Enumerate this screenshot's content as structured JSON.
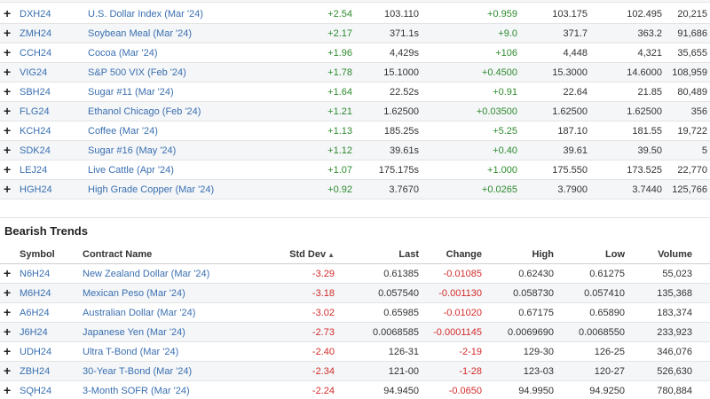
{
  "bullish": {
    "rows": [
      {
        "symbol": "DXH24",
        "name": "U.S. Dollar Index (Mar '24)",
        "std": "+2.54",
        "last": "103.110",
        "change": "+0.959",
        "high": "103.175",
        "low": "102.495",
        "volume": "20,215"
      },
      {
        "symbol": "ZMH24",
        "name": "Soybean Meal (Mar '24)",
        "std": "+2.17",
        "last": "371.1s",
        "change": "+9.0",
        "high": "371.7",
        "low": "363.2",
        "volume": "91,686"
      },
      {
        "symbol": "CCH24",
        "name": "Cocoa (Mar '24)",
        "std": "+1.96",
        "last": "4,429s",
        "change": "+106",
        "high": "4,448",
        "low": "4,321",
        "volume": "35,655"
      },
      {
        "symbol": "VIG24",
        "name": "S&P 500 VIX (Feb '24)",
        "std": "+1.78",
        "last": "15.1000",
        "change": "+0.4500",
        "high": "15.3000",
        "low": "14.6000",
        "volume": "108,959"
      },
      {
        "symbol": "SBH24",
        "name": "Sugar #11 (Mar '24)",
        "std": "+1.64",
        "last": "22.52s",
        "change": "+0.91",
        "high": "22.64",
        "low": "21.85",
        "volume": "80,489"
      },
      {
        "symbol": "FLG24",
        "name": "Ethanol Chicago (Feb '24)",
        "std": "+1.21",
        "last": "1.62500",
        "change": "+0.03500",
        "high": "1.62500",
        "low": "1.62500",
        "volume": "356"
      },
      {
        "symbol": "KCH24",
        "name": "Coffee (Mar '24)",
        "std": "+1.13",
        "last": "185.25s",
        "change": "+5.25",
        "high": "187.10",
        "low": "181.55",
        "volume": "19,722"
      },
      {
        "symbol": "SDK24",
        "name": "Sugar #16 (May '24)",
        "std": "+1.12",
        "last": "39.61s",
        "change": "+0.40",
        "high": "39.61",
        "low": "39.50",
        "volume": "5"
      },
      {
        "symbol": "LEJ24",
        "name": "Live Cattle (Apr '24)",
        "std": "+1.07",
        "last": "175.175s",
        "change": "+1.000",
        "high": "175.550",
        "low": "173.525",
        "volume": "22,770"
      },
      {
        "symbol": "HGH24",
        "name": "High Grade Copper (Mar '24)",
        "std": "+0.92",
        "last": "3.7670",
        "change": "+0.0265",
        "high": "3.7900",
        "low": "3.7440",
        "volume": "125,766"
      }
    ]
  },
  "bearish": {
    "title": "Bearish Trends",
    "headers": {
      "symbol": "Symbol",
      "name": "Contract Name",
      "std": "Std Dev",
      "last": "Last",
      "change": "Change",
      "high": "High",
      "low": "Low",
      "volume": "Volume"
    },
    "sort_glyph": "▲",
    "rows": [
      {
        "symbol": "N6H24",
        "name": "New Zealand Dollar (Mar '24)",
        "std": "-3.29",
        "last": "0.61385",
        "change": "-0.01085",
        "high": "0.62430",
        "low": "0.61275",
        "volume": "55,023"
      },
      {
        "symbol": "M6H24",
        "name": "Mexican Peso (Mar '24)",
        "std": "-3.18",
        "last": "0.057540",
        "change": "-0.001130",
        "high": "0.058730",
        "low": "0.057410",
        "volume": "135,368"
      },
      {
        "symbol": "A6H24",
        "name": "Australian Dollar (Mar '24)",
        "std": "-3.02",
        "last": "0.65985",
        "change": "-0.01020",
        "high": "0.67175",
        "low": "0.65890",
        "volume": "183,374"
      },
      {
        "symbol": "J6H24",
        "name": "Japanese Yen (Mar '24)",
        "std": "-2.73",
        "last": "0.0068585",
        "change": "-0.0001145",
        "high": "0.0069690",
        "low": "0.0068550",
        "volume": "233,923"
      },
      {
        "symbol": "UDH24",
        "name": "Ultra T-Bond (Mar '24)",
        "std": "-2.40",
        "last": "126-31",
        "change": "-2-19",
        "high": "129-30",
        "low": "126-25",
        "volume": "346,076"
      },
      {
        "symbol": "ZBH24",
        "name": "30-Year T-Bond (Mar '24)",
        "std": "-2.34",
        "last": "121-00",
        "change": "-1-28",
        "high": "123-03",
        "low": "120-27",
        "volume": "526,630"
      },
      {
        "symbol": "SQH24",
        "name": "3-Month SOFR (Mar '24)",
        "std": "-2.24",
        "last": "94.9450",
        "change": "-0.0650",
        "high": "94.9950",
        "low": "94.9250",
        "volume": "780,884"
      }
    ]
  },
  "icons": {
    "expand": "+"
  },
  "colors": {
    "positive": "#2d8a2d",
    "negative": "#d32b2b",
    "link": "#3a6fb0"
  }
}
